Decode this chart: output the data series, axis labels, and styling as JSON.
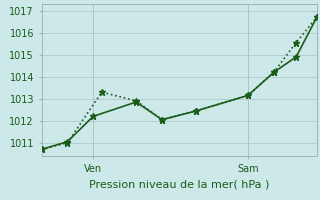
{
  "title": "",
  "xlabel": "Pression niveau de la mer( hPa )",
  "ylabel": "",
  "bg_color": "#cce8e8",
  "grid_color": "#b0c8c8",
  "line_color": "#1a5c1a",
  "ylim": [
    1010.4,
    1017.3
  ],
  "xlim": [
    0,
    16
  ],
  "xtick_positions": [
    3,
    12
  ],
  "xtick_labels": [
    "Ven",
    "Sam"
  ],
  "ytick_positions": [
    1011,
    1012,
    1013,
    1014,
    1015,
    1016,
    1017
  ],
  "vline_positions": [
    3,
    12
  ],
  "line1_x": [
    0,
    1.5,
    3.5,
    5.5,
    7.0,
    9.0,
    12.0,
    13.5,
    14.8,
    16.0
  ],
  "line1_y": [
    1010.7,
    1011.0,
    1013.3,
    1012.9,
    1012.05,
    1012.45,
    1013.15,
    1014.2,
    1015.55,
    1016.7
  ],
  "line2_x": [
    0,
    1.5,
    3.0,
    5.5,
    7.0,
    9.0,
    12.0,
    13.5,
    14.8,
    16.0
  ],
  "line2_y": [
    1010.7,
    1011.05,
    1012.2,
    1012.85,
    1012.05,
    1012.45,
    1013.15,
    1014.2,
    1014.9,
    1016.7
  ],
  "marker": "*",
  "markersize": 5,
  "linewidth": 1.2,
  "xlabel_fontsize": 8,
  "ytick_fontsize": 7,
  "xtick_fontsize": 7
}
